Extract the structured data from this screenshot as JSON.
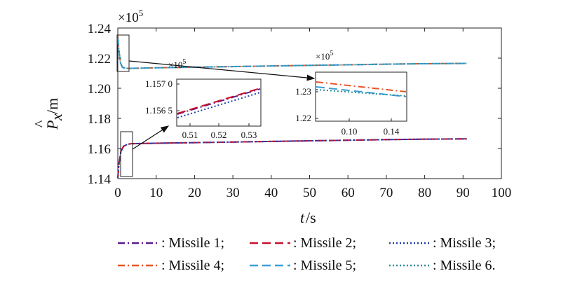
{
  "chart_data": {
    "type": "line",
    "xlabel_var": "t",
    "xlabel_unit": "/s",
    "ylabel_var": "P",
    "ylabel_sub": "x",
    "ylabel_unit": "/m",
    "y_multiplier": "×10",
    "y_multiplier_exp": "5",
    "xlim": [
      0,
      100
    ],
    "ylim": [
      1.14,
      1.24
    ],
    "x_ticks": [
      "0",
      "10",
      "20",
      "30",
      "40",
      "50",
      "60",
      "70",
      "80",
      "90",
      "100"
    ],
    "y_ticks": [
      "1.14",
      "1.16",
      "1.18",
      "1.20",
      "1.22",
      "1.24"
    ],
    "grid": false,
    "legend_position": "bottom",
    "series": [
      {
        "name": ": Missile 1;",
        "color": "#5b1a8a",
        "dash": "10 4 2 4",
        "group": "lower",
        "x": [
          0,
          0.3,
          0.8,
          1.5,
          2.5,
          3.5,
          10,
          20,
          30,
          40,
          50,
          60,
          70,
          80,
          91
        ],
        "y": [
          1.1405,
          1.15,
          1.158,
          1.1615,
          1.1628,
          1.1632,
          1.1635,
          1.1639,
          1.1643,
          1.1647,
          1.1651,
          1.1655,
          1.1659,
          1.1662,
          1.1664
        ]
      },
      {
        "name": ": Missile 2;",
        "color": "#c8102e",
        "dash": "12 6",
        "group": "lower",
        "x": [
          0,
          0.3,
          0.8,
          1.5,
          2.5,
          3.5,
          10,
          20,
          30,
          40,
          50,
          60,
          70,
          80,
          91
        ],
        "y": [
          1.1405,
          1.15,
          1.158,
          1.1615,
          1.1628,
          1.1632,
          1.1635,
          1.1639,
          1.1643,
          1.1647,
          1.1651,
          1.1655,
          1.1659,
          1.1662,
          1.1664
        ]
      },
      {
        "name": ": Missile 3;",
        "color": "#1f3fa8",
        "dash": "2 3",
        "group": "lower",
        "x": [
          0,
          0.3,
          0.8,
          1.5,
          2.5,
          3.5,
          10,
          20,
          30,
          40,
          50,
          60,
          70,
          80,
          91
        ],
        "y": [
          1.1405,
          1.15,
          1.158,
          1.1615,
          1.1628,
          1.1632,
          1.1635,
          1.1639,
          1.1643,
          1.1647,
          1.1651,
          1.1655,
          1.1659,
          1.1662,
          1.1664
        ]
      },
      {
        "name": ": Missile 4;",
        "color": "#e8542a",
        "dash": "10 4 2 4",
        "group": "upper",
        "x": [
          0,
          0.3,
          0.7,
          1.2,
          2,
          3,
          5,
          10,
          20,
          30,
          40,
          50,
          60,
          70,
          80,
          91
        ],
        "y": [
          1.235,
          1.225,
          1.217,
          1.214,
          1.2133,
          1.2132,
          1.2133,
          1.2136,
          1.214,
          1.2144,
          1.2148,
          1.2152,
          1.2156,
          1.216,
          1.2163,
          1.2165
        ]
      },
      {
        "name": ": Missile 5;",
        "color": "#3aa0d8",
        "dash": "12 6",
        "group": "upper",
        "x": [
          0,
          0.3,
          0.7,
          1.2,
          2,
          3,
          5,
          10,
          20,
          30,
          40,
          50,
          60,
          70,
          80,
          91
        ],
        "y": [
          1.234,
          1.2245,
          1.2168,
          1.2139,
          1.2133,
          1.2132,
          1.2133,
          1.2136,
          1.214,
          1.2144,
          1.2148,
          1.2152,
          1.2156,
          1.216,
          1.2163,
          1.2165
        ]
      },
      {
        "name": ": Missile 6.",
        "color": "#2a8c9c",
        "dash": "2 3",
        "group": "upper",
        "x": [
          0,
          0.3,
          0.7,
          1.2,
          2,
          3,
          5,
          10,
          20,
          30,
          40,
          50,
          60,
          70,
          80,
          91
        ],
        "y": [
          1.234,
          1.2245,
          1.2168,
          1.2139,
          1.2133,
          1.2132,
          1.2133,
          1.2136,
          1.214,
          1.2144,
          1.2148,
          1.2152,
          1.2156,
          1.216,
          1.2163,
          1.2165
        ]
      }
    ],
    "insets": [
      {
        "name": "lower-zoom",
        "multiplier": "×10",
        "multiplier_exp": "5",
        "x_ticks": [
          "0.51",
          "0.52",
          "0.53"
        ],
        "y_ticks": [
          "1.157 0",
          "1.156 5"
        ],
        "series_index": [
          0,
          1,
          2
        ]
      },
      {
        "name": "upper-zoom",
        "multiplier": "×10",
        "multiplier_exp": "5",
        "x_ticks": [
          "0.10",
          "0.14"
        ],
        "y_ticks": [
          "1.23",
          "1.22"
        ],
        "series_index": [
          3,
          4,
          5
        ]
      }
    ]
  }
}
